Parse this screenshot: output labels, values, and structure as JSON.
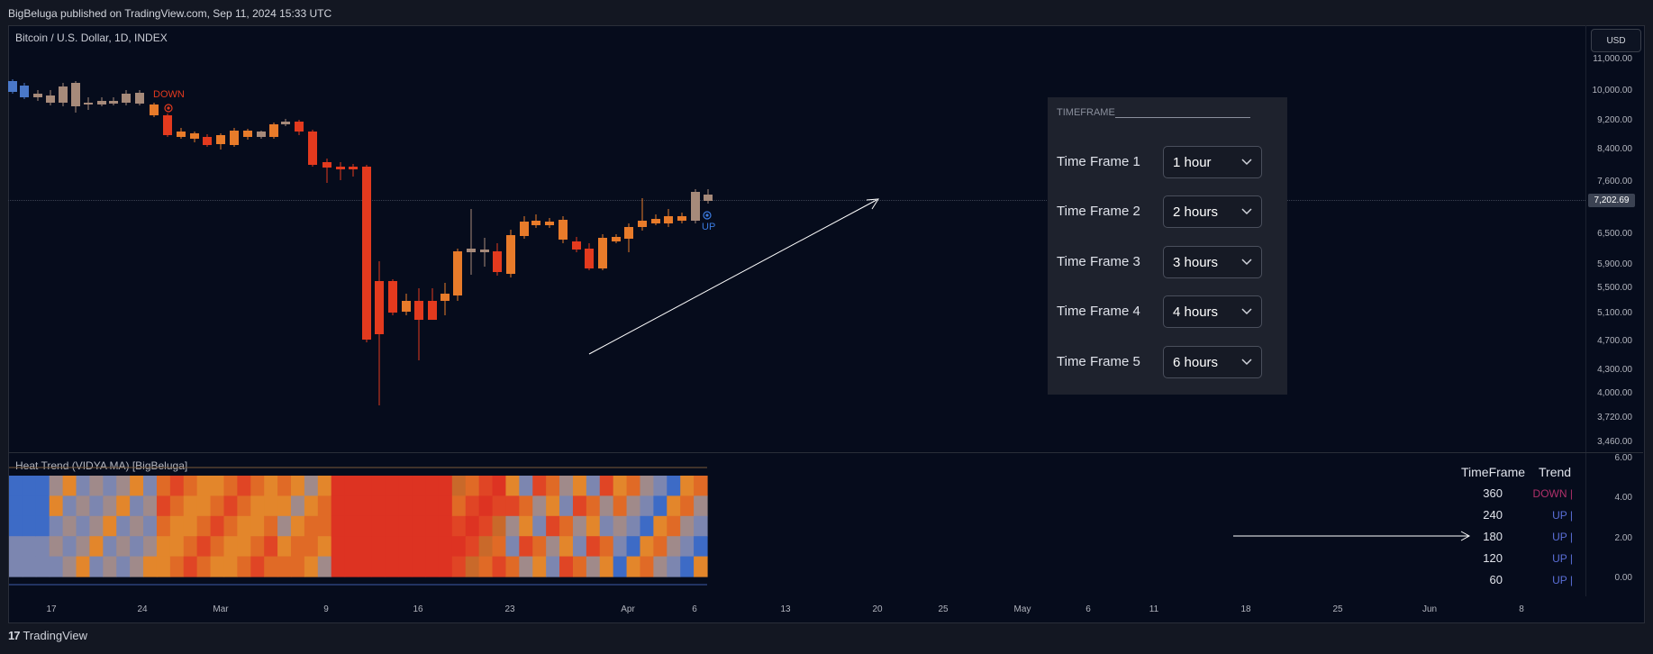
{
  "header": {
    "published": "BigBeluga published on TradingView.com, Sep 11, 2024 15:33 UTC"
  },
  "chart": {
    "title": "Bitcoin / U.S. Dollar, 1D, INDEX",
    "currency_button": "USD",
    "price_labels": [
      "11,000.00",
      "10,000.00",
      "9,200.00",
      "8,400.00",
      "7,600.00",
      "6,500.00",
      "5,900.00",
      "5,500.00",
      "5,100.00",
      "4,700.00",
      "4,300.00",
      "4,000.00",
      "3,720.00",
      "3,460.00"
    ],
    "last_price": "7,202.69",
    "signal_down": "DOWN",
    "signal_up": "UP",
    "colors": {
      "bull": "#e87b2a",
      "bear": "#e33a1e",
      "neutral": "#a68a7a",
      "blue": "#4a78c8",
      "down_text": "#e33a1e",
      "up_text": "#3b7be0"
    }
  },
  "timeframe_panel": {
    "header": "TIMEFRAME",
    "rows": [
      {
        "label": "Time Frame 1",
        "value": "1 hour"
      },
      {
        "label": "Time Frame 2",
        "value": "2 hours"
      },
      {
        "label": "Time Frame 3",
        "value": "3 hours"
      },
      {
        "label": "Time Frame 4",
        "value": "4 hours"
      },
      {
        "label": "Time Frame 5",
        "value": "6 hours"
      }
    ]
  },
  "indicator": {
    "title": "Heat Trend (VIDYA MA) [BigBeluga]",
    "scale_labels": [
      "6.00",
      "4.00",
      "2.00",
      "0.00"
    ],
    "table": {
      "headers": [
        "TimeFrame",
        "Trend"
      ],
      "rows": [
        {
          "tf": "360",
          "trend": "DOWN |",
          "color": "#b0306a"
        },
        {
          "tf": "240",
          "trend": "UP |",
          "color": "#5b6fd8"
        },
        {
          "tf": "180",
          "trend": "UP |",
          "color": "#5b6fd8"
        },
        {
          "tf": "120",
          "trend": "UP |",
          "color": "#5b6fd8"
        },
        {
          "tf": "60",
          "trend": "UP |",
          "color": "#5b6fd8"
        }
      ]
    }
  },
  "x_axis": [
    "17",
    "24",
    "Mar",
    "9",
    "16",
    "23",
    "Apr",
    "6",
    "13",
    "20",
    "25",
    "May",
    "6",
    "11",
    "18",
    "25",
    "Jun",
    "8"
  ],
  "footer": {
    "brand": "TradingView"
  }
}
